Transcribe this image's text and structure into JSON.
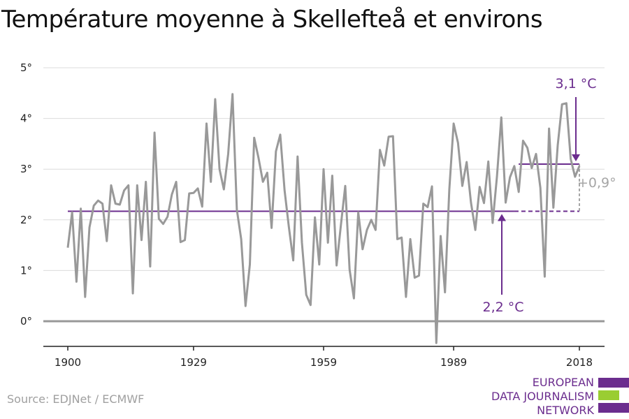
{
  "title": "Température moyenne à Skellefteå et environs",
  "source": "Source: EDJNet / ECMWF",
  "logo": {
    "lines": [
      "EUROPEAN",
      "DATA JOURNALISM",
      "NETWORK"
    ],
    "colors": {
      "purple": "#6b2d8e",
      "green": "#9acd32"
    }
  },
  "colors": {
    "series": "#999999",
    "annotation": "#6b2d8e",
    "grid": "#dcdcdc",
    "zero": "#999999",
    "axis": "#222222",
    "delta": "#a6a6a6"
  },
  "chart_data": {
    "type": "line",
    "x": [
      1900,
      1901,
      1902,
      1903,
      1904,
      1905,
      1906,
      1907,
      1908,
      1909,
      1910,
      1911,
      1912,
      1913,
      1914,
      1915,
      1916,
      1917,
      1918,
      1919,
      1920,
      1921,
      1922,
      1923,
      1924,
      1925,
      1926,
      1927,
      1928,
      1929,
      1930,
      1931,
      1932,
      1933,
      1934,
      1935,
      1936,
      1937,
      1938,
      1939,
      1940,
      1941,
      1942,
      1943,
      1944,
      1945,
      1946,
      1947,
      1948,
      1949,
      1950,
      1951,
      1952,
      1953,
      1954,
      1955,
      1956,
      1957,
      1958,
      1959,
      1960,
      1961,
      1962,
      1963,
      1964,
      1965,
      1966,
      1967,
      1968,
      1969,
      1970,
      1971,
      1972,
      1973,
      1974,
      1975,
      1976,
      1977,
      1978,
      1979,
      1980,
      1981,
      1982,
      1983,
      1984,
      1985,
      1986,
      1987,
      1988,
      1989,
      1990,
      1991,
      1992,
      1993,
      1994,
      1995,
      1996,
      1997,
      1998,
      1999,
      2000,
      2001,
      2002,
      2003,
      2004,
      2005,
      2006,
      2007,
      2008,
      2009,
      2010,
      2011,
      2012,
      2013,
      2014,
      2015,
      2016,
      2017,
      2018
    ],
    "series": [
      {
        "values": [
          1.45,
          2.15,
          0.78,
          2.22,
          0.48,
          1.85,
          2.28,
          2.38,
          2.32,
          1.58,
          2.68,
          2.32,
          2.3,
          2.58,
          2.68,
          0.55,
          2.68,
          1.6,
          2.75,
          1.08,
          3.72,
          2.02,
          1.92,
          2.06,
          2.5,
          2.75,
          1.56,
          1.6,
          2.52,
          2.53,
          2.62,
          2.26,
          3.9,
          2.75,
          4.38,
          3.0,
          2.6,
          3.3,
          4.48,
          2.2,
          1.62,
          0.3,
          1.12,
          3.62,
          3.22,
          2.75,
          2.93,
          1.84,
          3.35,
          3.68,
          2.58,
          1.85,
          1.2,
          3.25,
          1.55,
          0.52,
          0.32,
          2.05,
          1.12,
          3.0,
          1.55,
          2.87,
          1.1,
          1.9,
          2.67,
          1.02,
          0.45,
          2.15,
          1.42,
          1.8,
          2.0,
          1.8,
          3.38,
          3.07,
          3.64,
          3.65,
          1.62,
          1.65,
          0.48,
          1.62,
          0.86,
          0.9,
          2.32,
          2.25,
          2.66,
          -0.43,
          1.68,
          0.57,
          2.6,
          3.9,
          3.52,
          2.67,
          3.14,
          2.34,
          1.8,
          2.65,
          2.33,
          3.15,
          1.94,
          2.86,
          4.02,
          2.34,
          2.84,
          3.06,
          2.55,
          3.56,
          3.42,
          3.02,
          3.3,
          2.63,
          0.88,
          3.8,
          2.24,
          3.47,
          4.28,
          4.3,
          3.2,
          2.85,
          3.06
        ]
      }
    ],
    "ylim": [
      -0.4,
      5
    ],
    "yticks": [
      0,
      1,
      2,
      3,
      4,
      5
    ],
    "ytick_labels": [
      "0°",
      "1°",
      "2°",
      "3°",
      "4°",
      "5°"
    ],
    "xticks": [
      1900,
      1929,
      1959,
      1989,
      2018
    ],
    "xtick_labels": [
      "1900",
      "1929",
      "1959",
      "1989",
      "2018"
    ],
    "xlim": [
      1900,
      2018
    ],
    "grid": true,
    "reference_lines": [
      {
        "label": "2,2 °C",
        "value": 2.17,
        "from": 1900,
        "to": 2018
      },
      {
        "label": "3,1 °C",
        "value": 3.1,
        "from": 2004,
        "to": 2018
      }
    ],
    "difference_label": "+0,9°"
  }
}
